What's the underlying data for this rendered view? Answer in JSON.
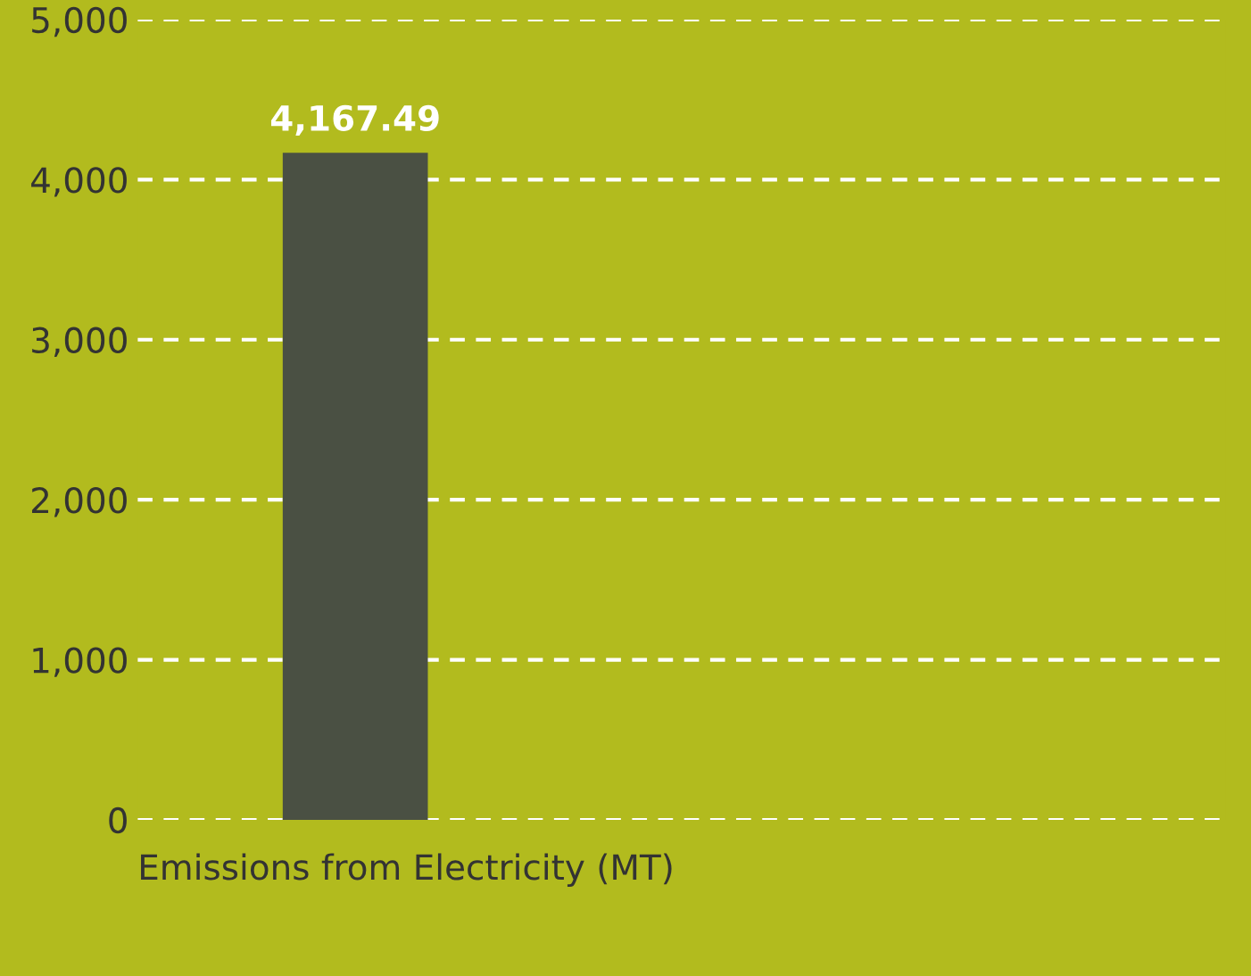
{
  "chart_data": {
    "type": "bar",
    "xlabel": "Emissions from Electricity (MT)",
    "categories": [
      null
    ],
    "values": [
      4167.49
    ],
    "color": "#4a5043",
    "value_labels": [
      "4,167.49"
    ],
    "ylim": [
      0,
      5000
    ],
    "yticks": [
      0,
      {
        "value": 1000,
        "label": "1,000"
      },
      {
        "value": 2000,
        "label": "2,000"
      },
      {
        "value": 3000,
        "label": "3,000"
      },
      {
        "value": 4000,
        "label": "4,000"
      },
      {
        "value": 5000,
        "label": "5,000"
      }
    ],
    "grid": "y",
    "line_style": "dashed"
  }
}
